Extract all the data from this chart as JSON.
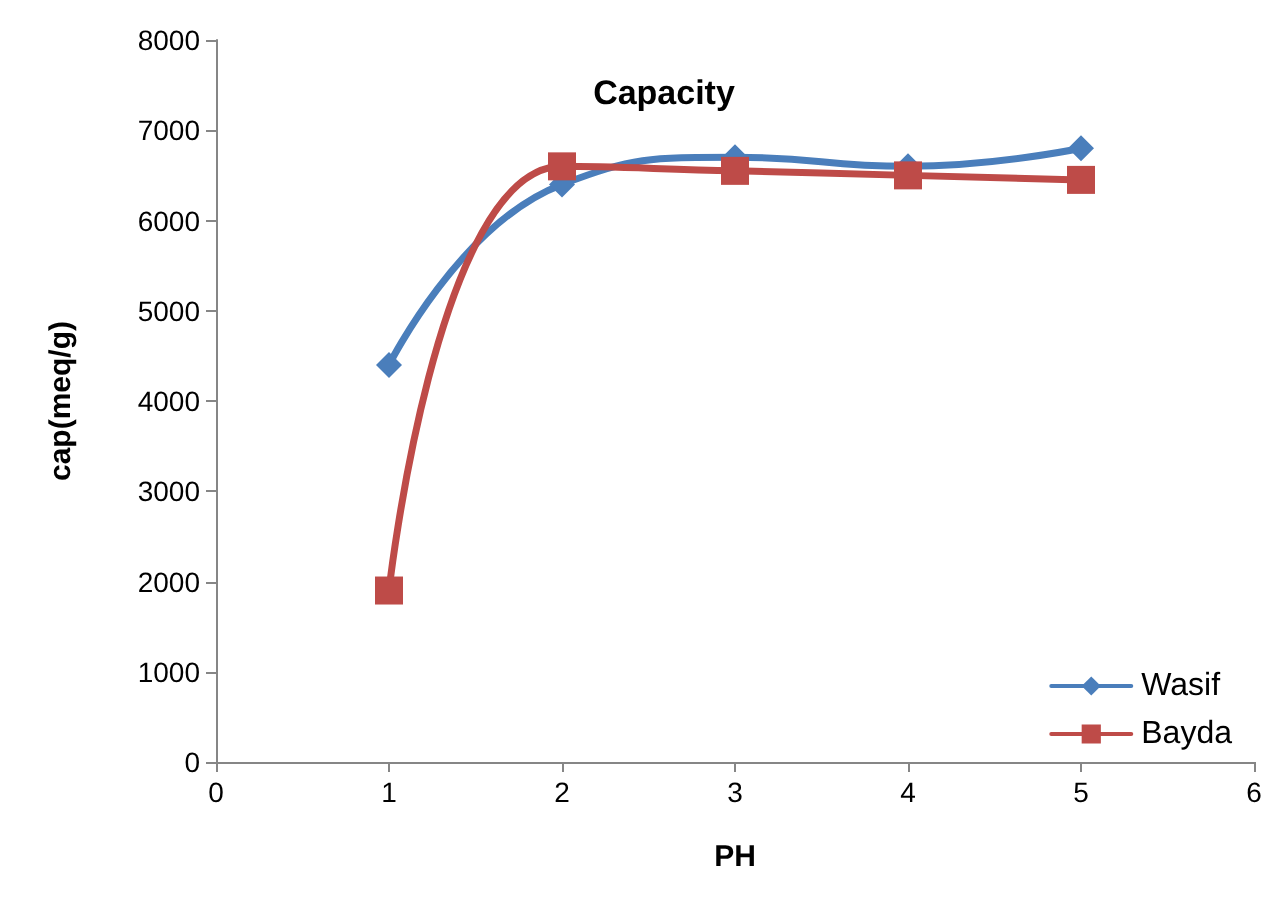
{
  "chart_data": {
    "type": "line",
    "title": "Capacity",
    "xlabel": "PH",
    "ylabel": "cap(meq/g)",
    "x": [
      1,
      2,
      3,
      4,
      5
    ],
    "series": [
      {
        "name": "Wasif",
        "color": "#4a7ebb",
        "marker": "diamond",
        "values": [
          4400,
          6400,
          6700,
          6600,
          6800
        ]
      },
      {
        "name": "Bayda",
        "color": "#be4b48",
        "marker": "square",
        "values": [
          1900,
          6600,
          6550,
          6500,
          6450
        ]
      }
    ],
    "xlim": [
      0,
      6
    ],
    "xticks": [
      0,
      1,
      2,
      3,
      4,
      5,
      6
    ],
    "ylim": [
      0,
      8000
    ],
    "yticks": [
      0,
      1000,
      2000,
      3000,
      4000,
      5000,
      6000,
      7000,
      8000
    ],
    "grid": false,
    "legend": "bottom right",
    "line_style": "solid"
  }
}
